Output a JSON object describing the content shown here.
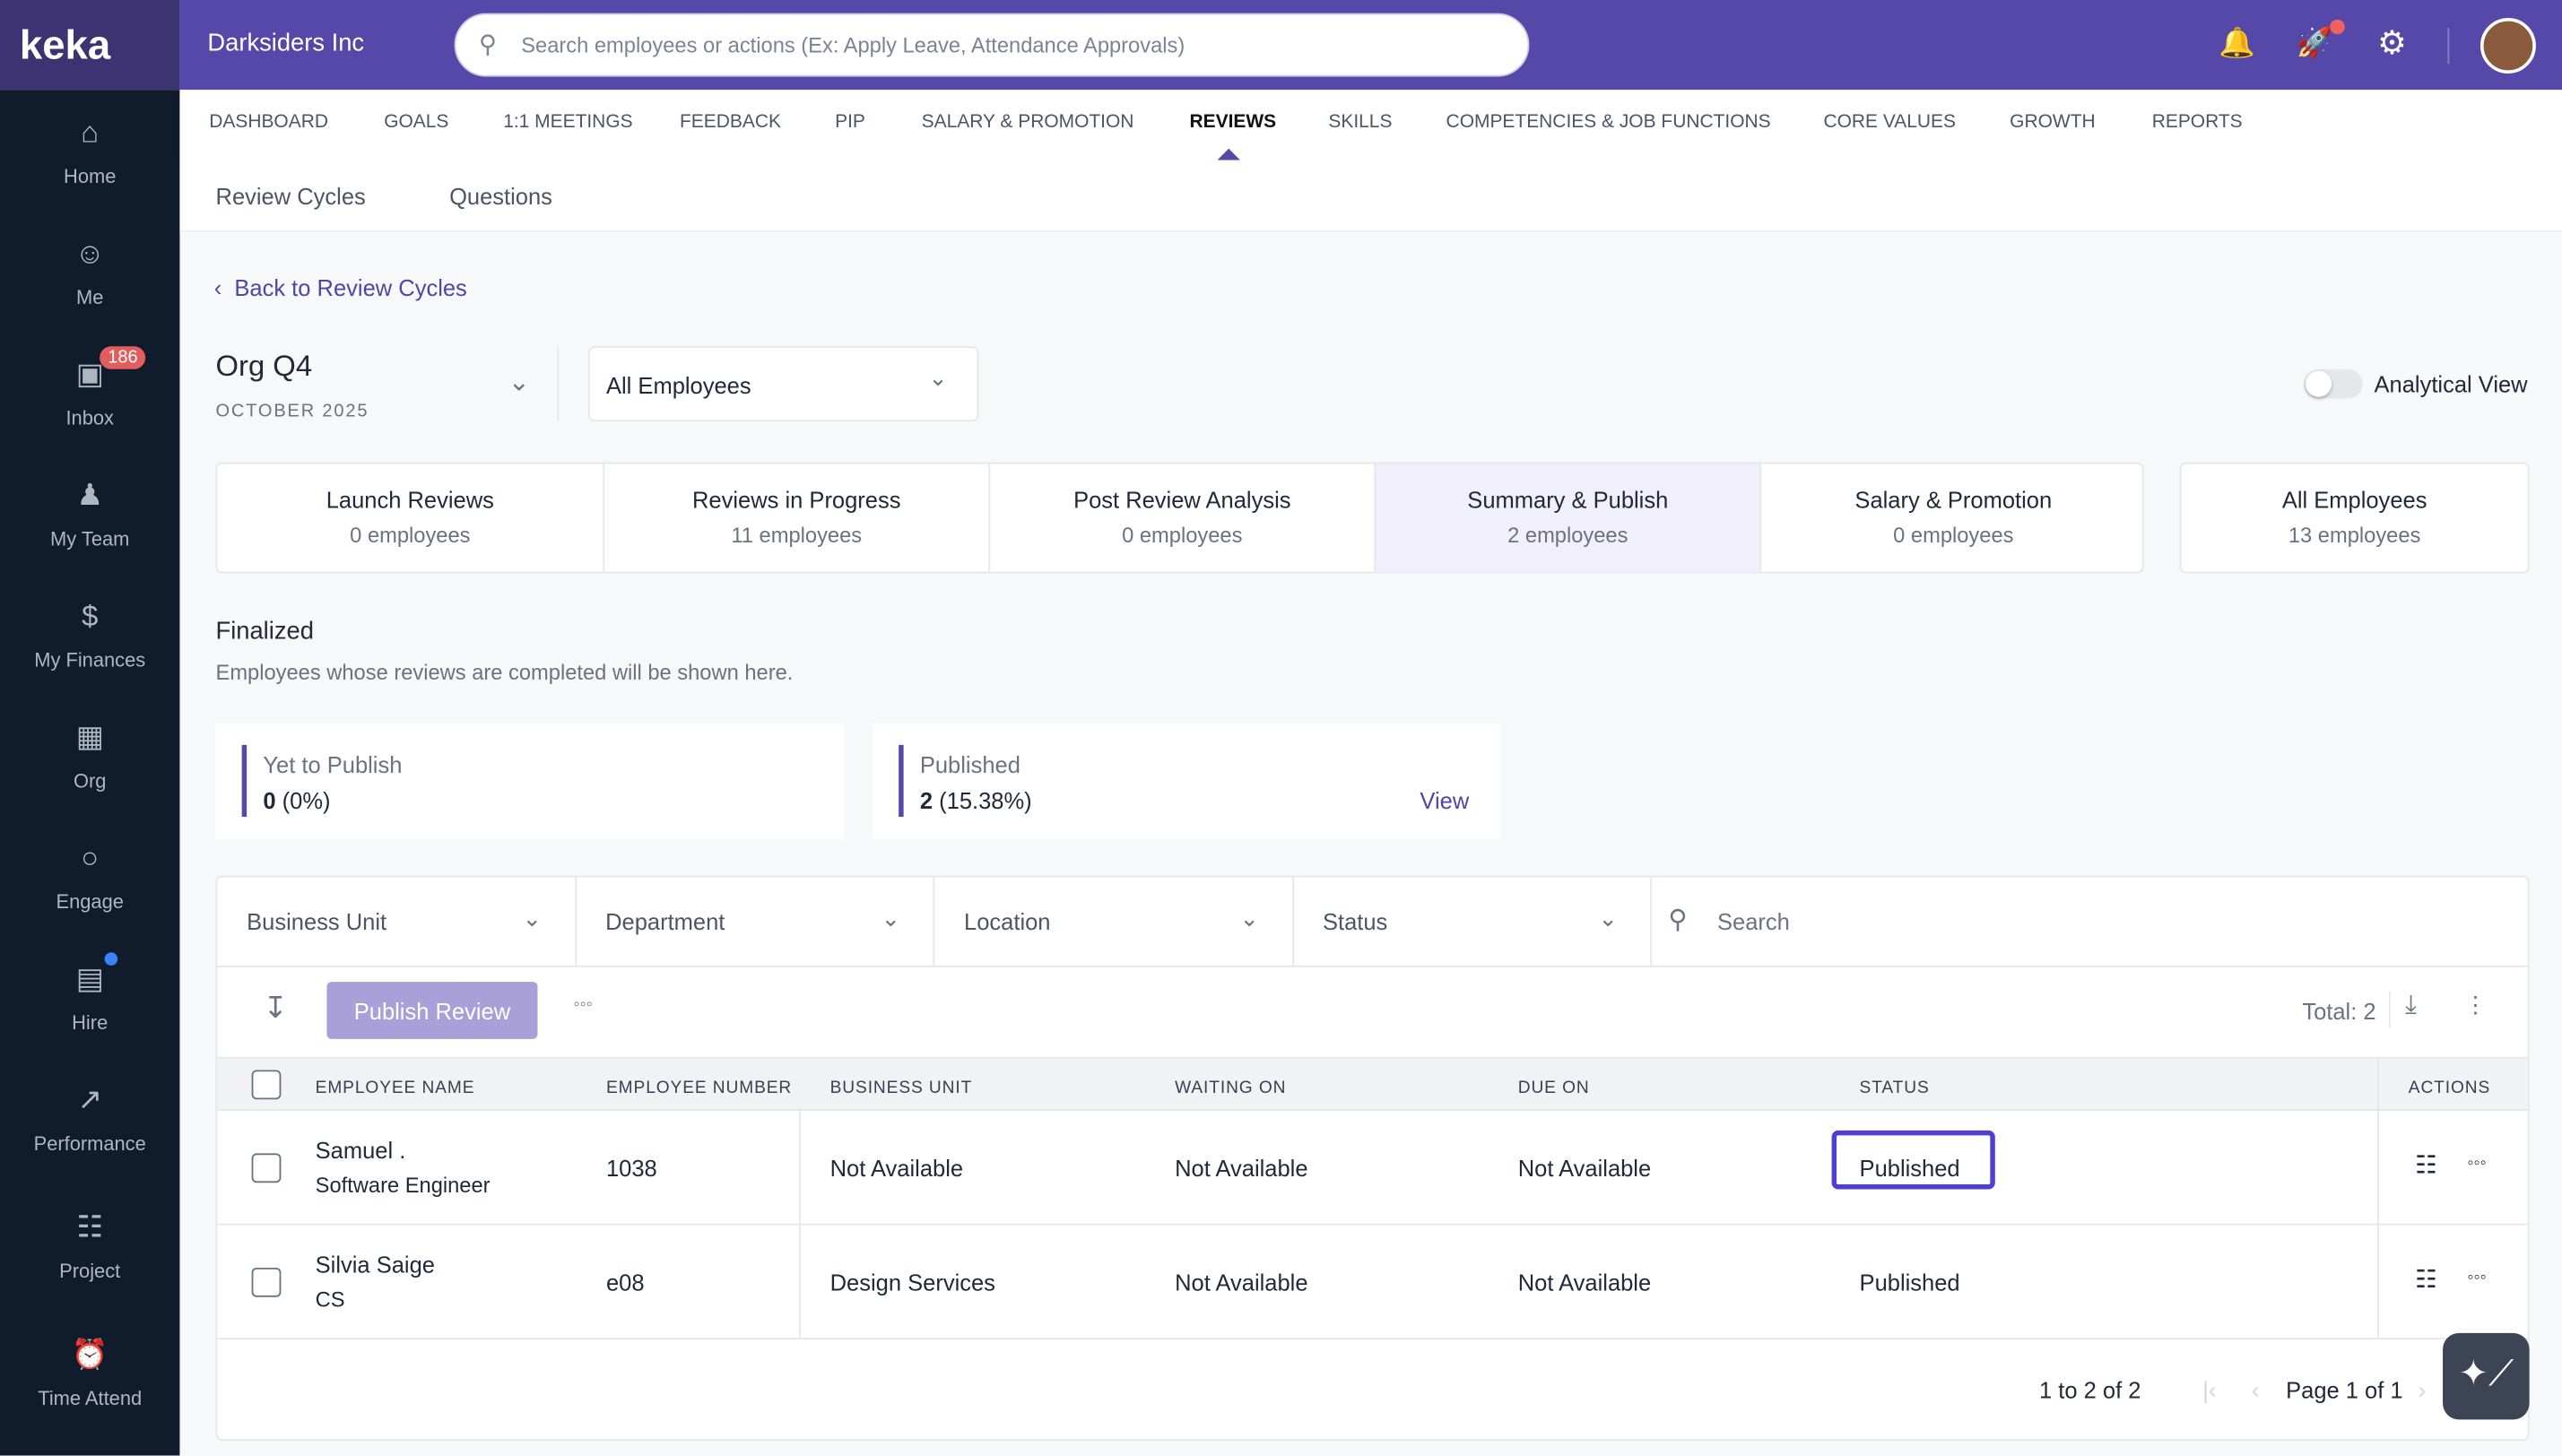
{
  "app": {
    "logo": "keka",
    "company": "Darksiders Inc",
    "search_placeholder": "Search employees or actions (Ex: Apply Leave, Attendance Approvals)",
    "accent": "#5548a8"
  },
  "sidebar": {
    "items": [
      {
        "label": "Home",
        "icon": "home-icon"
      },
      {
        "label": "Me",
        "icon": "user-icon"
      },
      {
        "label": "Inbox",
        "icon": "inbox-icon",
        "badge": "186"
      },
      {
        "label": "My Team",
        "icon": "team-icon"
      },
      {
        "label": "My Finances",
        "icon": "dollar-icon"
      },
      {
        "label": "Org",
        "icon": "building-icon"
      },
      {
        "label": "Engage",
        "icon": "chat-icon"
      },
      {
        "label": "Hire",
        "icon": "briefcase-icon"
      },
      {
        "label": "Performance",
        "icon": "trend-icon"
      },
      {
        "label": "Project",
        "icon": "clipboard-icon"
      },
      {
        "label": "Time Attend",
        "icon": "alarm-icon"
      }
    ]
  },
  "tabs": [
    "DASHBOARD",
    "GOALS",
    "1:1 MEETINGS",
    "FEEDBACK",
    "PIP",
    "SALARY & PROMOTION",
    "REVIEWS",
    "SKILLS",
    "COMPETENCIES & JOB FUNCTIONS",
    "CORE VALUES",
    "GROWTH",
    "REPORTS"
  ],
  "active_tab": "REVIEWS",
  "subnav": [
    "Review Cycles",
    "Questions"
  ],
  "back_link": "Back to Review Cycles",
  "cycle": {
    "name": "Org Q4",
    "period": "OCTOBER 2025",
    "employee_filter": "All Employees",
    "analytical_view": "Analytical View",
    "analytical_on": false
  },
  "stages": [
    {
      "title": "Launch Reviews",
      "count": "0 employees"
    },
    {
      "title": "Reviews in Progress",
      "count": "11 employees"
    },
    {
      "title": "Post Review Analysis",
      "count": "0 employees"
    },
    {
      "title": "Summary & Publish",
      "count": "2 employees",
      "active": true
    },
    {
      "title": "Salary & Promotion",
      "count": "0 employees"
    }
  ],
  "all_employees": {
    "title": "All Employees",
    "count": "13 employees"
  },
  "section": {
    "title": "Finalized",
    "desc": "Employees whose reviews are completed will be shown here."
  },
  "stats": [
    {
      "label": "Yet to Publish",
      "value": "0",
      "pct": "(0%)"
    },
    {
      "label": "Published",
      "value": "2",
      "pct": "(15.38%)",
      "action": "View"
    }
  ],
  "filters": [
    "Business Unit",
    "Department",
    "Location",
    "Status"
  ],
  "table_search_placeholder": "Search",
  "toolbar": {
    "publish": "Publish Review",
    "total": "Total: 2"
  },
  "columns": [
    "EMPLOYEE NAME",
    "EMPLOYEE NUMBER",
    "BUSINESS UNIT",
    "WAITING ON",
    "DUE ON",
    "STATUS",
    "ACTIONS"
  ],
  "rows": [
    {
      "name": "Samuel .",
      "role": "Software Engineer",
      "number": "1038",
      "bu": "Not Available",
      "waiting": "Not Available",
      "due": "Not Available",
      "status": "Published"
    },
    {
      "name": "Silvia Saige",
      "role": "CS",
      "number": "e08",
      "bu": "Design Services",
      "waiting": "Not Available",
      "due": "Not Available",
      "status": "Published"
    }
  ],
  "pagination": {
    "range": "1 to 2 of 2",
    "page": "Page 1 of 1"
  }
}
